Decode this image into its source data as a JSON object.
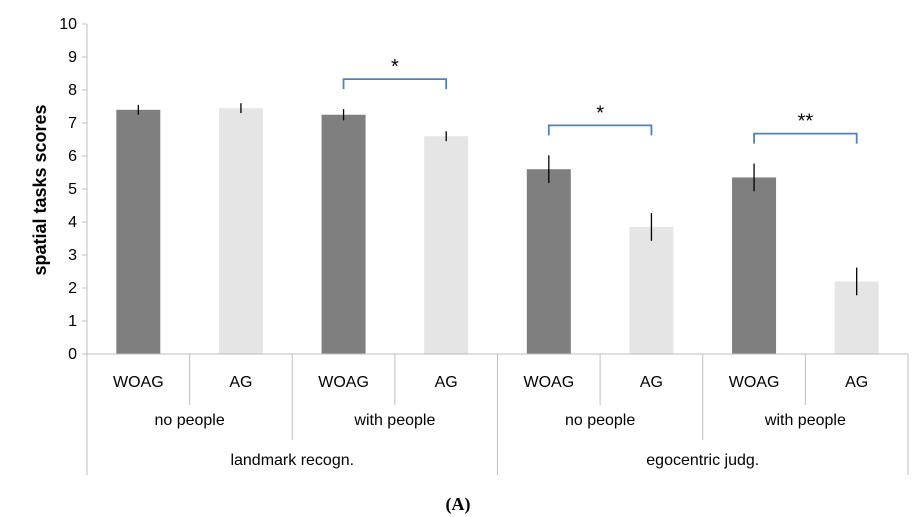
{
  "chart_data": {
    "type": "bar",
    "ylabel": "spatial tasks scores",
    "ylim": [
      0,
      10
    ],
    "yticks": [
      "0",
      "1",
      "2",
      "3",
      "4",
      "5",
      "6",
      "7",
      "8",
      "9",
      "10"
    ],
    "categories": [
      "WOAG",
      "AG",
      "WOAG",
      "AG",
      "WOAG",
      "AG",
      "WOAG",
      "AG"
    ],
    "subgroups": [
      "no people",
      "with people",
      "no people",
      "with people"
    ],
    "groups": [
      "landmark recogn.",
      "egocentric judg."
    ],
    "values": [
      7.4,
      7.45,
      7.25,
      6.6,
      5.6,
      3.85,
      5.35,
      2.2
    ],
    "errors": [
      0.15,
      0.15,
      0.17,
      0.15,
      0.42,
      0.42,
      0.42,
      0.42
    ],
    "colors": {
      "WOAG": "#7f7f7f",
      "AG": "#e5e5e5",
      "bracket": "#4f81bd"
    },
    "significance": [
      {
        "from": 2,
        "to": 3,
        "label": "*"
      },
      {
        "from": 4,
        "to": 5,
        "label": "*"
      },
      {
        "from": 6,
        "to": 7,
        "label": "**"
      }
    ],
    "caption": "(A)"
  }
}
